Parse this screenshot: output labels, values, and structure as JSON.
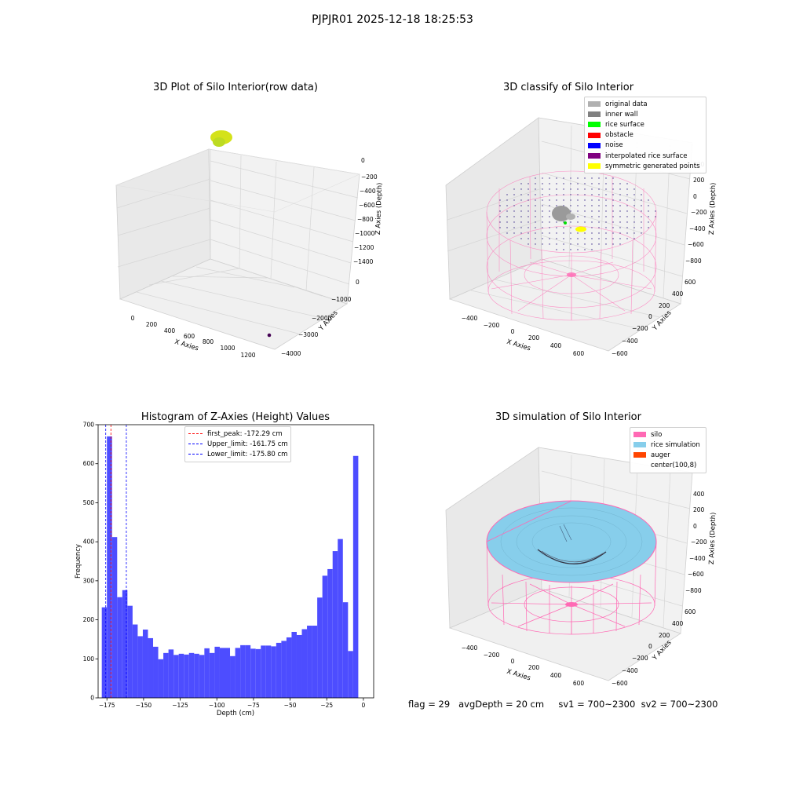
{
  "suptitle": "PJPJR01 2025-12-18 18:25:53",
  "footer": "flag = 29   avgDepth = 20 cm     sv1 = 700~2300  sv2 = 700~2300",
  "colors": {
    "pane": "#f2f2f2",
    "grid": "#d8d8d8",
    "silo": "#ff69b4",
    "rice": "#87ceeb",
    "hist_bar": "#4d4dff",
    "first_peak": "#ff0000",
    "limits": "#0000ff"
  },
  "chart_data": [
    {
      "type": "scatter",
      "projection": "3d",
      "title": "3D Plot of Silo Interior(row data)",
      "xlabel": "X Axies",
      "ylabel": "Y Axies",
      "zlabel": "Z Axies (Depth)",
      "xticks": [
        "0",
        "200",
        "400",
        "600",
        "800",
        "1000",
        "1200"
      ],
      "yticks": [
        "0",
        "−1000",
        "−2000",
        "−3000",
        "−4000"
      ],
      "zticks": [
        "0",
        "−200",
        "−400",
        "−600",
        "−800",
        "−1000",
        "−1200",
        "−1400"
      ],
      "points": [
        {
          "label": "row data cluster",
          "x": 0,
          "y": 0,
          "z": -50,
          "color": "#d4e21a"
        },
        {
          "label": "outlier",
          "x": 1150,
          "y": -4000,
          "z": -1400,
          "color": "#440154"
        }
      ]
    },
    {
      "type": "scatter",
      "projection": "3d",
      "title": "3D classify of Silo Interior",
      "xlabel": "X Axies",
      "ylabel": "Y Axies",
      "zlabel": "Z Axies (Depth)",
      "xticks": [
        "−400",
        "−200",
        "0",
        "200",
        "400",
        "600"
      ],
      "yticks": [
        "600",
        "400",
        "200",
        "0",
        "−200",
        "−400",
        "−600"
      ],
      "zticks": [
        "200",
        "0",
        "−200",
        "−400",
        "−600",
        "−800"
      ],
      "legend": [
        {
          "label": "original data",
          "color": "#b0b0b0"
        },
        {
          "label": "inner wall",
          "color": "#808080"
        },
        {
          "label": "rice surface",
          "color": "#00ff00"
        },
        {
          "label": "obstacle",
          "color": "#ff0000"
        },
        {
          "label": "noise",
          "color": "#0000ff"
        },
        {
          "label": "interpolated rice surface",
          "color": "#800080"
        },
        {
          "label": "symmetric generated points",
          "color": "#ffff00"
        }
      ]
    },
    {
      "type": "bar",
      "title": "Histogram of Z-Axies (Height) Values",
      "xlabel": "Depth (cm)",
      "ylabel": "Frequency",
      "xlim": [
        -181,
        7
      ],
      "ylim": [
        0,
        700
      ],
      "xticks": [
        -175,
        -150,
        -125,
        -100,
        -75,
        -50,
        -25,
        0
      ],
      "yticks": [
        0,
        100,
        200,
        300,
        400,
        500,
        600,
        700
      ],
      "bin_width": 3.5,
      "bin_start": -178.5,
      "values": [
        232,
        670,
        412,
        258,
        276,
        236,
        188,
        158,
        175,
        153,
        131,
        99,
        115,
        124,
        110,
        113,
        111,
        115,
        113,
        110,
        127,
        115,
        131,
        128,
        128,
        107,
        128,
        135,
        135,
        126,
        125,
        134,
        134,
        132,
        141,
        146,
        155,
        169,
        161,
        176,
        185,
        185,
        257,
        313,
        330,
        376,
        407,
        245,
        120,
        620
      ],
      "reference_lines": [
        {
          "label": "first_peak: -172.29 cm",
          "x": -172.29,
          "color": "#ff0000"
        },
        {
          "label": "Upper_limit: -161.75 cm",
          "x": -161.75,
          "color": "#0000ff"
        },
        {
          "label": "Lower_limit: -175.80 cm",
          "x": -175.8,
          "color": "#0000ff"
        }
      ]
    },
    {
      "type": "area",
      "projection": "3d",
      "title": "3D simulation of Silo Interior",
      "xlabel": "X Axies",
      "ylabel": "Y Axies",
      "zlabel": "Z Axies (Depth)",
      "xticks": [
        "−400",
        "−200",
        "0",
        "200",
        "400",
        "600"
      ],
      "yticks": [
        "600",
        "400",
        "200",
        "0",
        "−200",
        "−400",
        "−600"
      ],
      "zticks": [
        "400",
        "200",
        "0",
        "−200",
        "−400",
        "−600",
        "−800"
      ],
      "legend": [
        {
          "label": "silo",
          "color": "#ff69b4"
        },
        {
          "label": "rice simulation",
          "color": "#87ceeb"
        },
        {
          "label": "auger",
          "color": "#ff4500"
        },
        {
          "label": "center(100,8)",
          "color": "none"
        }
      ]
    }
  ]
}
